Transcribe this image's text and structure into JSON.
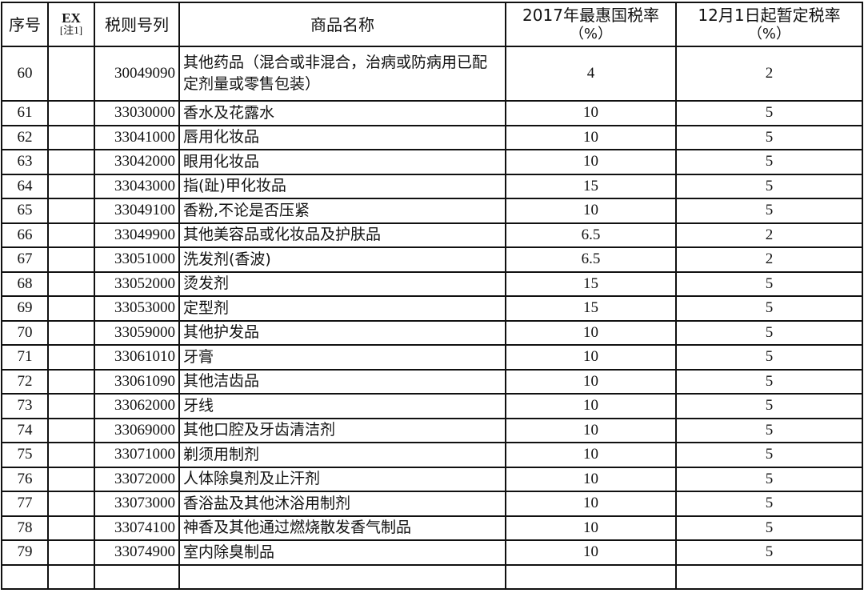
{
  "headers": {
    "seq": "序号",
    "ex": "EX",
    "ex_note": "[注1]",
    "code": "税则号列",
    "name": "商品名称",
    "mfn_rate": "2017年最惠国税率",
    "mfn_unit": "（%）",
    "provisional_rate": "12月1日起暂定税率",
    "provisional_unit": "（%）"
  },
  "rows": [
    {
      "seq": "60",
      "ex": "",
      "code": "30049090",
      "name": "其他药品（混合或非混合，治病或防病用已配定剂量或零售包装）",
      "mfn": "4",
      "prov": "2"
    },
    {
      "seq": "61",
      "ex": "",
      "code": "33030000",
      "name": "香水及花露水",
      "mfn": "10",
      "prov": "5"
    },
    {
      "seq": "62",
      "ex": "",
      "code": "33041000",
      "name": "唇用化妆品",
      "mfn": "10",
      "prov": "5"
    },
    {
      "seq": "63",
      "ex": "",
      "code": "33042000",
      "name": "眼用化妆品",
      "mfn": "10",
      "prov": "5"
    },
    {
      "seq": "64",
      "ex": "",
      "code": "33043000",
      "name": "指(趾)甲化妆品",
      "mfn": "15",
      "prov": "5"
    },
    {
      "seq": "65",
      "ex": "",
      "code": "33049100",
      "name": "香粉,不论是否压紧",
      "mfn": "10",
      "prov": "5"
    },
    {
      "seq": "66",
      "ex": "",
      "code": "33049900",
      "name": "其他美容品或化妆品及护肤品",
      "mfn": "6.5",
      "prov": "2"
    },
    {
      "seq": "67",
      "ex": "",
      "code": "33051000",
      "name": "洗发剂(香波)",
      "mfn": "6.5",
      "prov": "2"
    },
    {
      "seq": "68",
      "ex": "",
      "code": "33052000",
      "name": "烫发剂",
      "mfn": "15",
      "prov": "5"
    },
    {
      "seq": "69",
      "ex": "",
      "code": "33053000",
      "name": "定型剂",
      "mfn": "15",
      "prov": "5"
    },
    {
      "seq": "70",
      "ex": "",
      "code": "33059000",
      "name": "其他护发品",
      "mfn": "10",
      "prov": "5"
    },
    {
      "seq": "71",
      "ex": "",
      "code": "33061010",
      "name": "牙膏",
      "mfn": "10",
      "prov": "5"
    },
    {
      "seq": "72",
      "ex": "",
      "code": "33061090",
      "name": "其他洁齿品",
      "mfn": "10",
      "prov": "5"
    },
    {
      "seq": "73",
      "ex": "",
      "code": "33062000",
      "name": "牙线",
      "mfn": "10",
      "prov": "5"
    },
    {
      "seq": "74",
      "ex": "",
      "code": "33069000",
      "name": "其他口腔及牙齿清洁剂",
      "mfn": "10",
      "prov": "5"
    },
    {
      "seq": "75",
      "ex": "",
      "code": "33071000",
      "name": "剃须用制剂",
      "mfn": "10",
      "prov": "5"
    },
    {
      "seq": "76",
      "ex": "",
      "code": "33072000",
      "name": "人体除臭剂及止汗剂",
      "mfn": "10",
      "prov": "5"
    },
    {
      "seq": "77",
      "ex": "",
      "code": "33073000",
      "name": "香浴盐及其他沐浴用制剂",
      "mfn": "10",
      "prov": "5"
    },
    {
      "seq": "78",
      "ex": "",
      "code": "33074100",
      "name": "神香及其他通过燃烧散发香气制品",
      "mfn": "10",
      "prov": "5"
    },
    {
      "seq": "79",
      "ex": "",
      "code": "33074900",
      "name": "室内除臭制品",
      "mfn": "10",
      "prov": "5"
    }
  ]
}
